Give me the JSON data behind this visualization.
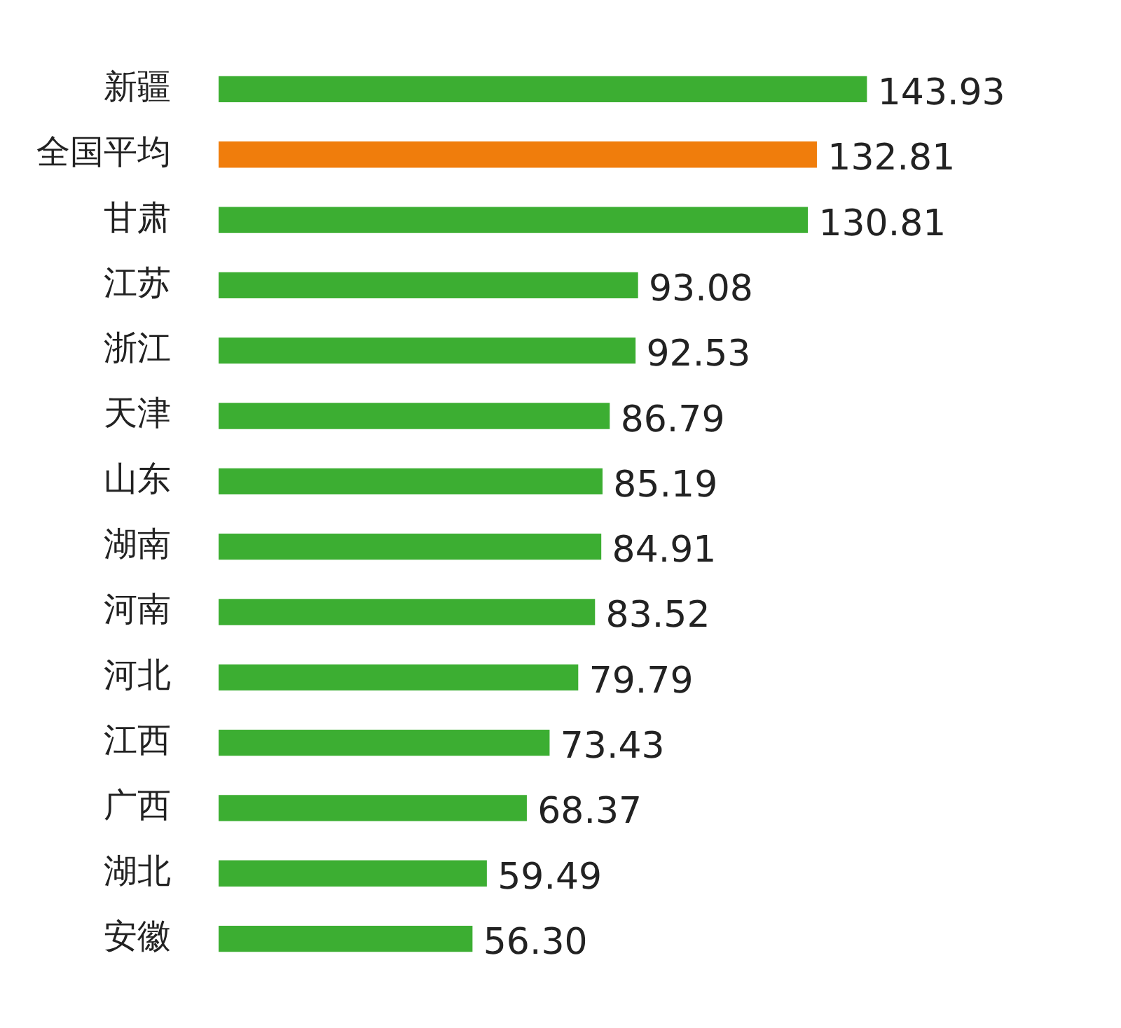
{
  "chart_data": {
    "type": "bar",
    "orientation": "horizontal",
    "categories": [
      "新疆",
      "全国平均",
      "甘肃",
      "江苏",
      "浙江",
      "天津",
      "山东",
      "湖南",
      "河南",
      "河北",
      "江西",
      "广西",
      "湖北",
      "安徽"
    ],
    "values": [
      143.93,
      132.81,
      130.81,
      93.08,
      92.53,
      86.79,
      85.19,
      84.91,
      83.52,
      79.79,
      73.43,
      68.37,
      59.49,
      56.3
    ],
    "colors": [
      "#3cae32",
      "#f07d0c",
      "#3cae32",
      "#3cae32",
      "#3cae32",
      "#3cae32",
      "#3cae32",
      "#3cae32",
      "#3cae32",
      "#3cae32",
      "#3cae32",
      "#3cae32",
      "#3cae32",
      "#3cae32"
    ],
    "value_labels": [
      "143.93",
      "132.81",
      "130.81",
      "93.08",
      "92.53",
      "86.79",
      "85.19",
      "84.91",
      "83.52",
      "79.79",
      "73.43",
      "68.37",
      "59.49",
      "56.30"
    ],
    "legend": false
  }
}
